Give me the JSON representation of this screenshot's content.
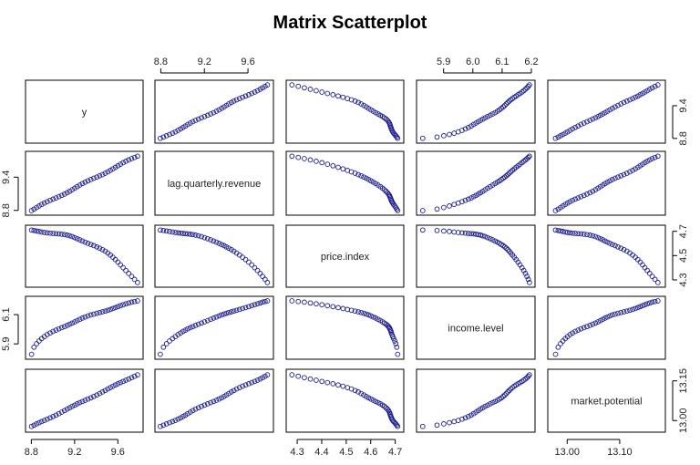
{
  "chart_data": {
    "type": "scatter-matrix",
    "title": "Matrix Scatterplot",
    "variables": [
      "y",
      "lag.quarterly.revenue",
      "price.index",
      "income.level",
      "market.potential"
    ],
    "ranges": {
      "y": [
        8.78,
        9.8
      ],
      "lag.quarterly.revenue": [
        8.78,
        9.8
      ],
      "price.index": [
        4.27,
        4.72
      ],
      "income.level": [
        5.82,
        6.2
      ],
      "market.potential": [
        12.97,
        13.18
      ]
    },
    "ticks": {
      "y": [
        "8.8",
        "9.4"
      ],
      "lag.quarterly.revenue": [
        "8.8",
        "9.2",
        "9.6"
      ],
      "price.index": [
        "4.3",
        "4.4",
        "4.5",
        "4.6",
        "4.7"
      ],
      "income.level": [
        "5.9",
        "6.0",
        "6.1",
        "6.2"
      ],
      "market.potential": [
        "13.00",
        "13.10"
      ],
      "y_left": [
        "8.8",
        "9.4"
      ],
      "price_right": [
        "4.3",
        "4.5",
        "4.7"
      ],
      "income_left": [
        "5.9",
        "6.1"
      ],
      "market_right": [
        "13.00",
        "13.15"
      ],
      "y_bottom": [
        "8.8",
        "9.2",
        "9.6"
      ],
      "y_right": [
        "8.8",
        "9.4"
      ]
    },
    "tick_values": {
      "y_bottom": [
        8.8,
        9.2,
        9.6
      ],
      "lag_top": [
        8.8,
        9.2,
        9.6
      ],
      "price_bottom": [
        4.3,
        4.4,
        4.5,
        4.6,
        4.7
      ],
      "income_top": [
        5.9,
        6.0,
        6.1,
        6.2
      ],
      "market_bottom": [
        13.0,
        13.1
      ],
      "y_right": [
        8.8,
        9.4
      ],
      "lag_left": [
        8.8,
        9.4
      ],
      "price_right": [
        4.3,
        4.5,
        4.7
      ],
      "income_left": [
        5.9,
        6.1
      ],
      "market_right": [
        13.0,
        13.15
      ]
    },
    "n_points": 40,
    "grid": false,
    "point_color": "#1a1a8c"
  }
}
